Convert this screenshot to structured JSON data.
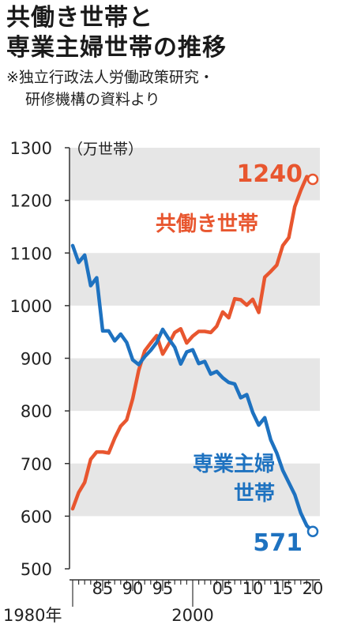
{
  "title_lines": [
    "共働き世帯と",
    "専業主婦世帯の推移"
  ],
  "source_lines": [
    "※独立行政法人労働政策研究・",
    "研修機構の資料より"
  ],
  "chart_data": {
    "type": "line",
    "unit": "（万世帯）",
    "ylim": [
      500,
      1300
    ],
    "yticks": [
      "500",
      "600",
      "700",
      "800",
      "900",
      "1000",
      "1100",
      "1200",
      "1300"
    ],
    "xlim": [
      1980,
      2020
    ],
    "xticks": [
      {
        "year": 1980,
        "label": "1980年"
      },
      {
        "year": 1985,
        "label": "85"
      },
      {
        "year": 1990,
        "label": "90"
      },
      {
        "year": 1995,
        "label": "95"
      },
      {
        "year": 2000,
        "label": "2000"
      },
      {
        "year": 2005,
        "label": "05"
      },
      {
        "year": 2010,
        "label": "10"
      },
      {
        "year": 2015,
        "label": "15"
      },
      {
        "year": 2020,
        "label": "20"
      }
    ],
    "grid": "alternating horizontal bands",
    "x": [
      1980,
      1981,
      1982,
      1983,
      1984,
      1985,
      1986,
      1987,
      1988,
      1989,
      1990,
      1991,
      1992,
      1993,
      1994,
      1995,
      1996,
      1997,
      1998,
      1999,
      2000,
      2001,
      2002,
      2003,
      2004,
      2005,
      2006,
      2007,
      2008,
      2009,
      2010,
      2011,
      2012,
      2013,
      2014,
      2015,
      2016,
      2017,
      2018,
      2019,
      2020
    ],
    "series": [
      {
        "name": "共働き世帯",
        "color": "#e8562f",
        "values": [
          614,
          645,
          664,
          708,
          722,
          722,
          720,
          748,
          771,
          783,
          823,
          877,
          914,
          929,
          943,
          908,
          927,
          949,
          956,
          929,
          942,
          951,
          951,
          949,
          961,
          988,
          977,
          1013,
          1011,
          1001,
          1012,
          987,
          1054,
          1065,
          1077,
          1114,
          1129,
          1188,
          1219,
          1245,
          1240
        ],
        "end_label": "1240"
      },
      {
        "name": "専業主婦\n世帯",
        "name_lines": [
          "専業主婦",
          "世帯"
        ],
        "color": "#1e72c0",
        "values": [
          1114,
          1082,
          1096,
          1038,
          1053,
          952,
          952,
          933,
          946,
          930,
          897,
          888,
          903,
          915,
          930,
          955,
          937,
          921,
          889,
          912,
          916,
          890,
          894,
          870,
          875,
          863,
          854,
          851,
          825,
          831,
          797,
          773,
          787,
          745,
          720,
          687,
          664,
          641,
          606,
          582,
          571
        ],
        "end_label": "571"
      }
    ]
  }
}
